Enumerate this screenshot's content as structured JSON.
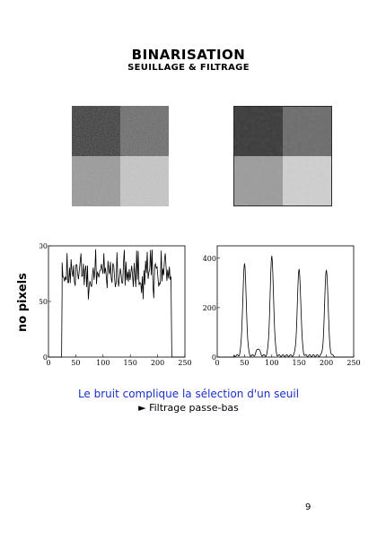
{
  "page": {
    "title": "BINARISATION",
    "subtitle": "SEUILLAGE & FILTRAGE",
    "caption": "Le bruit complique la sélection d'un seuil",
    "bullet_symbol": "►",
    "bullet_text": "Filtrage passe-bas",
    "page_number": "9"
  },
  "images": [
    {
      "name": "noisy-quadrants-image",
      "quadrant_gray_levels": [
        50,
        100,
        150,
        200
      ],
      "noisy": true
    },
    {
      "name": "filtered-quadrants-image",
      "quadrant_gray_levels": [
        50,
        100,
        150,
        200
      ],
      "noisy": false
    }
  ],
  "chart_data": [
    {
      "type": "line",
      "ylabel": "no pixels",
      "xlim": [
        0,
        250
      ],
      "ylim": [
        0,
        100
      ],
      "xticks": [
        0,
        50,
        100,
        150,
        200,
        250
      ],
      "yticks": [
        0,
        50,
        100
      ],
      "description_values": {
        "plateau_start": 25,
        "plateau_end": 225,
        "plateau_mean": 75,
        "plateau_range": [
          50,
          97
        ]
      }
    },
    {
      "type": "line",
      "xlim": [
        0,
        250
      ],
      "ylim": [
        0,
        450
      ],
      "xticks": [
        0,
        50,
        100,
        150,
        200,
        250
      ],
      "yticks": [
        0,
        200,
        400
      ],
      "peaks": [
        {
          "x": 50,
          "y": 370
        },
        {
          "x": 100,
          "y": 400
        },
        {
          "x": 150,
          "y": 350
        },
        {
          "x": 200,
          "y": 350
        }
      ],
      "minor_bump": {
        "x": 75,
        "y": 30
      }
    }
  ]
}
